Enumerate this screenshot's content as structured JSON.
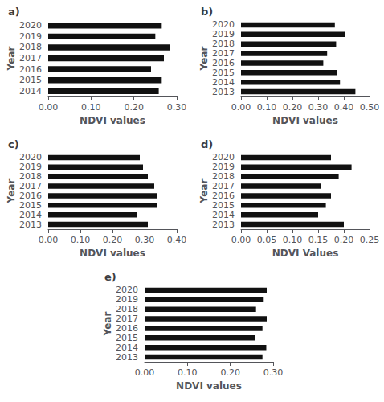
{
  "chart_data": [
    {
      "type": "bar",
      "orientation": "horizontal",
      "title": "a)",
      "categories": [
        "2020",
        "2019",
        "2018",
        "2017",
        "2016",
        "2015",
        "2014"
      ],
      "values": [
        0.265,
        0.25,
        0.285,
        0.27,
        0.24,
        0.265,
        0.258
      ],
      "color": "#111111",
      "xlabel": "NDVI values",
      "ylabel": "Year",
      "xlim": [
        0,
        0.3
      ],
      "xticks": [
        {
          "value": 0,
          "label": "0.00"
        },
        {
          "value": 0.1,
          "label": "0.10"
        },
        {
          "value": 0.2,
          "label": "0.20"
        },
        {
          "value": 0.3,
          "label": "0.30"
        }
      ],
      "grid": false
    },
    {
      "type": "bar",
      "orientation": "horizontal",
      "title": "b)",
      "categories": [
        "2020",
        "2019",
        "2018",
        "2017",
        "2016",
        "2015",
        "2014",
        "2013"
      ],
      "values": [
        0.365,
        0.405,
        0.37,
        0.335,
        0.32,
        0.375,
        0.385,
        0.445
      ],
      "color": "#111111",
      "xlabel": "NDVI values",
      "ylabel": "Year",
      "xlim": [
        0,
        0.5
      ],
      "xticks": [
        {
          "value": 0,
          "label": "0.00"
        },
        {
          "value": 0.1,
          "label": "0.10"
        },
        {
          "value": 0.2,
          "label": "0.20"
        },
        {
          "value": 0.3,
          "label": "0.30"
        },
        {
          "value": 0.4,
          "label": "0.40"
        },
        {
          "value": 0.5,
          "label": "0.50"
        }
      ],
      "grid": false
    },
    {
      "type": "bar",
      "orientation": "horizontal",
      "title": "c)",
      "categories": [
        "2020",
        "2019",
        "2018",
        "2017",
        "2016",
        "2015",
        "2014",
        "2013"
      ],
      "values": [
        0.285,
        0.295,
        0.31,
        0.33,
        0.34,
        0.34,
        0.275,
        0.31
      ],
      "color": "#111111",
      "xlabel": "NDVI values",
      "ylabel": "Year",
      "xlim": [
        0,
        0.4
      ],
      "xticks": [
        {
          "value": 0,
          "label": "0.00"
        },
        {
          "value": 0.1,
          "label": "0.10"
        },
        {
          "value": 0.2,
          "label": "0.20"
        },
        {
          "value": 0.3,
          "label": "0.30"
        },
        {
          "value": 0.4,
          "label": "0.40"
        }
      ],
      "grid": false
    },
    {
      "type": "bar",
      "orientation": "horizontal",
      "title": "d)",
      "categories": [
        "2020",
        "2019",
        "2018",
        "2017",
        "2016",
        "2015",
        "2014",
        "2013"
      ],
      "values": [
        0.175,
        0.215,
        0.19,
        0.155,
        0.175,
        0.165,
        0.15,
        0.2
      ],
      "color": "#111111",
      "xlabel": "NDVI Values",
      "ylabel": "Year",
      "xlim": [
        0,
        0.25
      ],
      "xticks": [
        {
          "value": 0,
          "label": "0.00"
        },
        {
          "value": 0.05,
          "label": "0.05"
        },
        {
          "value": 0.1,
          "label": "0.10"
        },
        {
          "value": 0.15,
          "label": "0.15"
        },
        {
          "value": 0.2,
          "label": "0.20"
        },
        {
          "value": 0.25,
          "label": "0.25"
        }
      ],
      "grid": false
    },
    {
      "type": "bar",
      "orientation": "horizontal",
      "title": "e)",
      "categories": [
        "2020",
        "2019",
        "2018",
        "2017",
        "2016",
        "2015",
        "2014",
        "2013"
      ],
      "values": [
        0.285,
        0.278,
        0.26,
        0.285,
        0.275,
        0.258,
        0.284,
        0.275
      ],
      "color": "#111111",
      "xlabel": "NDVI values",
      "ylabel": "Year",
      "xlim": [
        0,
        0.3
      ],
      "xticks": [
        {
          "value": 0,
          "label": "0.00"
        },
        {
          "value": 0.1,
          "label": "0.10"
        },
        {
          "value": 0.2,
          "label": "0.20"
        },
        {
          "value": 0.3,
          "label": "0.30"
        }
      ],
      "grid": false
    }
  ]
}
